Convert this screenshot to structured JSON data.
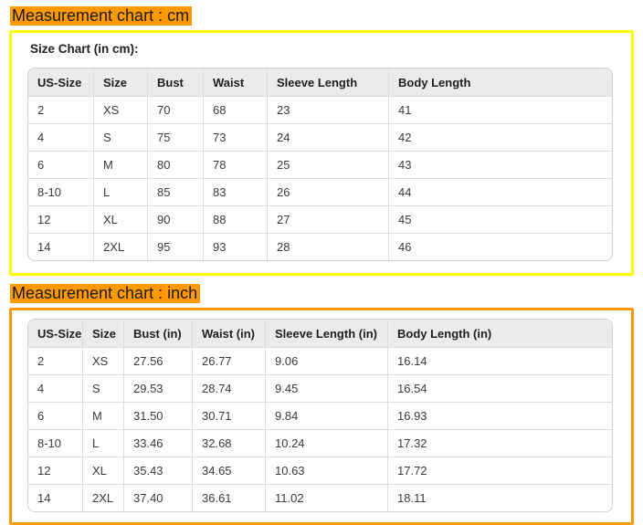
{
  "cm_section": {
    "heading": "Measurement chart : cm",
    "label": "Size Chart (in cm):",
    "table": {
      "headers": [
        "US-Size",
        "Size",
        "Bust",
        "Waist",
        "Sleeve Length",
        "Body Length"
      ],
      "rows": [
        [
          "2",
          "XS",
          "70",
          "68",
          "23",
          "41"
        ],
        [
          "4",
          "S",
          "75",
          "73",
          "24",
          "42"
        ],
        [
          "6",
          "M",
          "80",
          "78",
          "25",
          "43"
        ],
        [
          "8-10",
          "L",
          "85",
          "83",
          "26",
          "44"
        ],
        [
          "12",
          "XL",
          "90",
          "88",
          "27",
          "45"
        ],
        [
          "14",
          "2XL",
          "95",
          "93",
          "28",
          "46"
        ]
      ]
    }
  },
  "inch_section": {
    "heading": "Measurement chart : inch",
    "table": {
      "headers": [
        "US-Size",
        "Size",
        "Bust (in)",
        "Waist (in)",
        "Sleeve Length (in)",
        "Body Length (in)"
      ],
      "rows": [
        [
          "2",
          "XS",
          "27.56",
          "26.77",
          "9.06",
          "16.14"
        ],
        [
          "4",
          "S",
          "29.53",
          "28.74",
          "9.45",
          "16.54"
        ],
        [
          "6",
          "M",
          "31.50",
          "30.71",
          "9.84",
          "16.93"
        ],
        [
          "8-10",
          "L",
          "33.46",
          "32.68",
          "10.24",
          "17.32"
        ],
        [
          "12",
          "XL",
          "35.43",
          "34.65",
          "10.63",
          "17.72"
        ],
        [
          "14",
          "2XL",
          "37.40",
          "36.61",
          "11.02",
          "18.11"
        ]
      ]
    }
  },
  "colors": {
    "heading_highlight": "#FF9900",
    "cm_box_border": "#FFFF00",
    "inch_box_border": "#FF9900",
    "table_header_bg": "#EBEBEB",
    "table_border": "#D0D0D0",
    "text": "#2B2B2B"
  }
}
